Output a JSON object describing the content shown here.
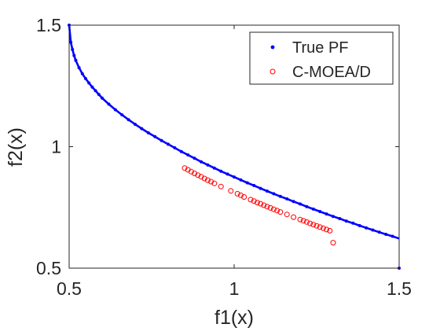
{
  "chart_data": {
    "type": "scatter",
    "xlabel": "f1(x)",
    "ylabel": "f2(x)",
    "xlim": [
      0.5,
      1.5
    ],
    "ylim": [
      0.5,
      1.5
    ],
    "xticks": [
      0.5,
      1,
      1.5
    ],
    "yticks": [
      0.5,
      1,
      1.5
    ],
    "xtick_labels": [
      "0.5",
      "1",
      "1.5"
    ],
    "ytick_labels": [
      "0.5",
      "1",
      "1.5"
    ],
    "grid": false,
    "legend_position": "top-right",
    "series": [
      {
        "name": "True PF",
        "marker": "filled-dot",
        "color": "#0000ff",
        "x": [
          0.5,
          0.505,
          0.51,
          0.515,
          0.52,
          0.53,
          0.54,
          0.55,
          0.56,
          0.57,
          0.58,
          0.59,
          0.6,
          0.62,
          0.64,
          0.66,
          0.68,
          0.7,
          0.72,
          0.74,
          0.76,
          0.78,
          0.8,
          0.82,
          0.84,
          0.86,
          0.88,
          0.9,
          0.92,
          0.94,
          0.96,
          0.98,
          1.0,
          1.02,
          1.04,
          1.06,
          1.08,
          1.1,
          1.12,
          1.14,
          1.16,
          1.18,
          1.2,
          1.22,
          1.24,
          1.26,
          1.28,
          1.3,
          1.32,
          1.34,
          1.36,
          1.38,
          1.4,
          1.42,
          1.44,
          1.46,
          1.48,
          1.5
        ],
        "y": [
          1.5,
          1.43,
          1.4,
          1.375,
          1.355,
          1.325,
          1.3,
          1.28,
          1.262,
          1.245,
          1.23,
          1.215,
          1.2,
          1.175,
          1.152,
          1.131,
          1.111,
          1.092,
          1.074,
          1.057,
          1.041,
          1.025,
          1.01,
          0.995,
          0.98,
          0.966,
          0.952,
          0.938,
          0.925,
          0.912,
          0.899,
          0.887,
          0.875,
          0.863,
          0.851,
          0.84,
          0.828,
          0.817,
          0.806,
          0.795,
          0.785,
          0.774,
          0.764,
          0.753,
          0.743,
          0.733,
          0.723,
          0.713,
          0.704,
          0.694,
          0.685,
          0.675,
          0.666,
          0.657,
          0.648,
          0.639,
          0.631,
          0.5
        ]
      },
      {
        "name": "C-MOEA/D",
        "marker": "open-circle",
        "color": "#ff0000",
        "x": [
          0.85,
          0.86,
          0.87,
          0.88,
          0.89,
          0.9,
          0.91,
          0.92,
          0.93,
          0.94,
          0.96,
          0.99,
          1.01,
          1.02,
          1.03,
          1.05,
          1.06,
          1.07,
          1.08,
          1.09,
          1.1,
          1.11,
          1.12,
          1.13,
          1.14,
          1.16,
          1.18,
          1.2,
          1.21,
          1.22,
          1.23,
          1.24,
          1.25,
          1.26,
          1.27,
          1.28,
          1.29,
          1.3
        ],
        "y": [
          0.912,
          0.905,
          0.897,
          0.89,
          0.883,
          0.876,
          0.869,
          0.862,
          0.856,
          0.849,
          0.836,
          0.818,
          0.806,
          0.8,
          0.793,
          0.782,
          0.776,
          0.77,
          0.765,
          0.759,
          0.753,
          0.748,
          0.742,
          0.737,
          0.731,
          0.721,
          0.71,
          0.7,
          0.695,
          0.69,
          0.684,
          0.679,
          0.674,
          0.669,
          0.664,
          0.659,
          0.654,
          0.605
        ]
      }
    ]
  }
}
